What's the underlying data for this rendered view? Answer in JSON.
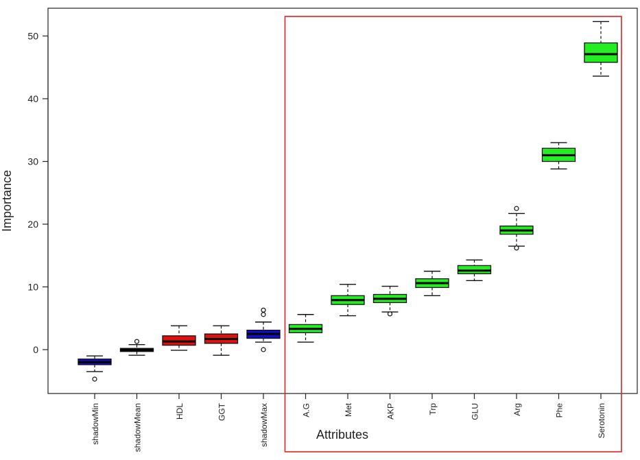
{
  "chart_data": {
    "type": "box",
    "xlabel": "Attributes",
    "ylabel": "Importance",
    "ylim": [
      -7,
      55
    ],
    "yticks": [
      0,
      10,
      20,
      30,
      40,
      50
    ],
    "colors": {
      "shadow": "#1010c0",
      "rejected": "#e01010",
      "confirmed": "#22ee22",
      "median_only": "#000000",
      "highlight_box": "#dd2222"
    },
    "highlight": {
      "from": "A.G",
      "to": "Serotonin"
    },
    "boxes": [
      {
        "name": "shadowMin",
        "group": "shadow",
        "min": -3.5,
        "q1": -2.4,
        "median": -2.0,
        "q3": -1.5,
        "max": -1.0,
        "outliers": [
          -4.7
        ]
      },
      {
        "name": "shadowMean",
        "group": "median_only",
        "min": -0.9,
        "q1": -0.3,
        "median": -0.05,
        "q3": 0.2,
        "max": 0.8,
        "outliers": [
          1.3
        ]
      },
      {
        "name": "HDL",
        "group": "rejected",
        "min": -0.1,
        "q1": 0.7,
        "median": 1.3,
        "q3": 2.2,
        "max": 3.8,
        "outliers": []
      },
      {
        "name": "GGT",
        "group": "rejected",
        "min": -0.9,
        "q1": 1.0,
        "median": 1.7,
        "q3": 2.5,
        "max": 3.8,
        "outliers": []
      },
      {
        "name": "shadowMax",
        "group": "shadow",
        "min": 1.2,
        "q1": 1.8,
        "median": 2.5,
        "q3": 3.1,
        "max": 4.4,
        "outliers": [
          5.6,
          6.3,
          0.0
        ]
      },
      {
        "name": "A.G",
        "group": "confirmed",
        "min": 1.2,
        "q1": 2.7,
        "median": 3.3,
        "q3": 4.0,
        "max": 5.6,
        "outliers": []
      },
      {
        "name": "Met",
        "group": "confirmed",
        "min": 5.4,
        "q1": 7.2,
        "median": 7.9,
        "q3": 8.6,
        "max": 10.4,
        "outliers": []
      },
      {
        "name": "AKP",
        "group": "confirmed",
        "min": 6.0,
        "q1": 7.5,
        "median": 8.1,
        "q3": 8.8,
        "max": 10.1,
        "outliers": [
          5.7
        ]
      },
      {
        "name": "Trp",
        "group": "confirmed",
        "min": 8.6,
        "q1": 9.9,
        "median": 10.6,
        "q3": 11.3,
        "max": 12.5,
        "outliers": []
      },
      {
        "name": "GLU",
        "group": "confirmed",
        "min": 11.0,
        "q1": 12.1,
        "median": 12.6,
        "q3": 13.4,
        "max": 14.3,
        "outliers": []
      },
      {
        "name": "Arg",
        "group": "confirmed",
        "min": 16.5,
        "q1": 18.4,
        "median": 19.0,
        "q3": 19.7,
        "max": 21.7,
        "outliers": [
          16.2,
          22.5
        ]
      },
      {
        "name": "Phe",
        "group": "confirmed",
        "min": 28.8,
        "q1": 30.0,
        "median": 31.0,
        "q3": 32.1,
        "max": 33.0,
        "outliers": []
      },
      {
        "name": "Serotonin",
        "group": "confirmed",
        "min": 43.6,
        "q1": 45.8,
        "median": 47.1,
        "q3": 48.9,
        "max": 52.3,
        "outliers": []
      }
    ]
  }
}
